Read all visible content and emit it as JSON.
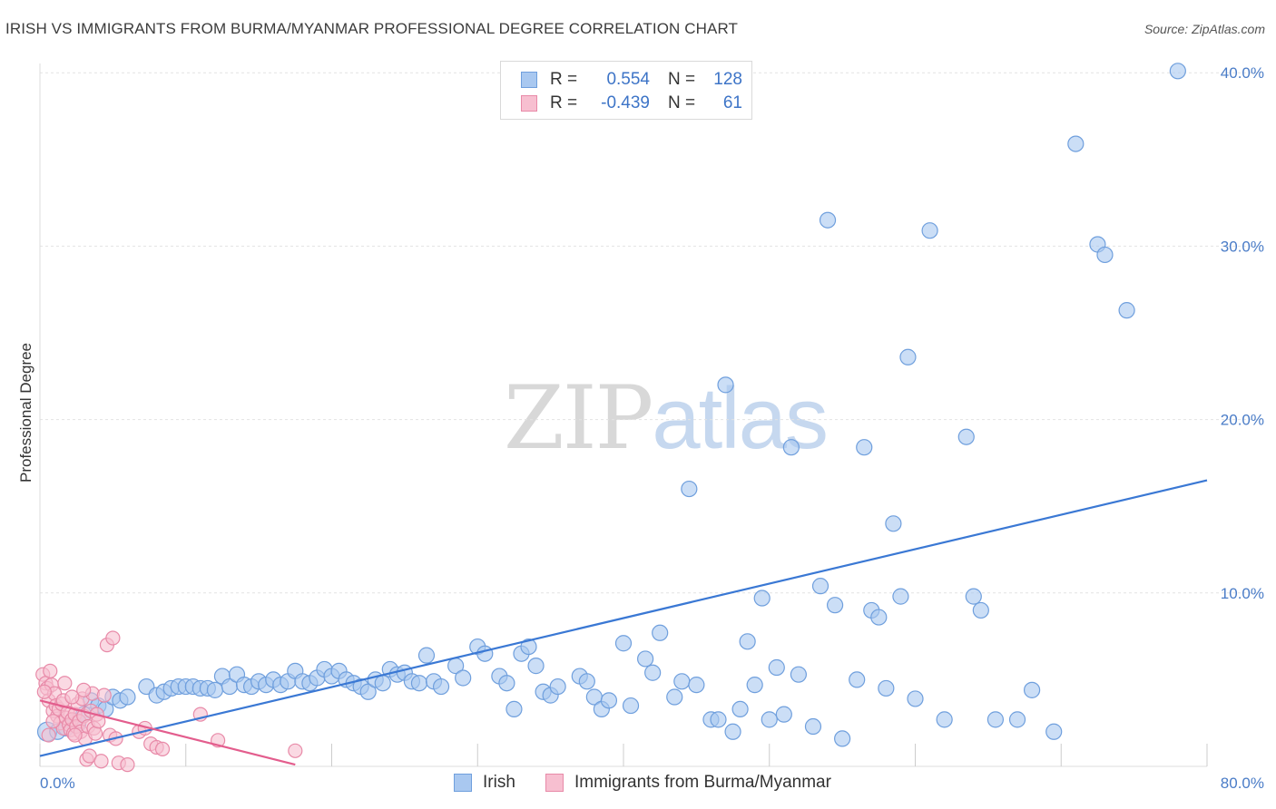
{
  "title": "IRISH VS IMMIGRANTS FROM BURMA/MYANMAR PROFESSIONAL DEGREE CORRELATION CHART",
  "source": "Source: ZipAtlas.com",
  "watermark": {
    "zip": "ZIP",
    "atlas": "atlas"
  },
  "legend": {
    "rows": [
      {
        "r_label": "R =",
        "r_value": "0.554",
        "n_label": "N =",
        "n_value": "128",
        "color": "#a9c8f0",
        "border": "#6f9fdd"
      },
      {
        "r_label": "R =",
        "r_value": "-0.439",
        "n_label": "N =",
        "n_value": "61",
        "color": "#f7bfd0",
        "border": "#e88aa8"
      }
    ]
  },
  "bottom_legend": [
    {
      "label": "Irish",
      "color": "#a9c8f0",
      "border": "#6f9fdd"
    },
    {
      "label": "Immigrants from Burma/Myanmar",
      "color": "#f7bfd0",
      "border": "#e88aa8"
    }
  ],
  "chart_data": {
    "type": "scatter",
    "title": "IRISH VS IMMIGRANTS FROM BURMA/MYANMAR PROFESSIONAL DEGREE CORRELATION CHART",
    "xlabel": "",
    "ylabel": "Professional Degree",
    "xlim": [
      0,
      80
    ],
    "ylim": [
      0,
      41
    ],
    "x_tick_labels": [
      "0.0%",
      "80.0%"
    ],
    "y_ticks": [
      10,
      20,
      30,
      40
    ],
    "y_tick_labels": [
      "10.0%",
      "20.0%",
      "30.0%",
      "40.0%"
    ],
    "grid": true,
    "series": [
      {
        "name": "Irish",
        "color": "#a9c8f0",
        "stroke": "#6f9fdd",
        "trend": {
          "x": [
            0,
            80
          ],
          "y": [
            0.6,
            16.5
          ],
          "color": "#3a78d4"
        },
        "points": [
          [
            0.5,
            2.0
          ],
          [
            1.2,
            2.0
          ],
          [
            1.8,
            2.2
          ],
          [
            2.5,
            2.5
          ],
          [
            3.0,
            3.0
          ],
          [
            3.5,
            3.8
          ],
          [
            4.0,
            3.5
          ],
          [
            4.5,
            3.3
          ],
          [
            5.0,
            4.0
          ],
          [
            5.5,
            3.8
          ],
          [
            6.0,
            4.0
          ],
          [
            7.3,
            4.6
          ],
          [
            8.0,
            4.1
          ],
          [
            8.5,
            4.3
          ],
          [
            9.0,
            4.5
          ],
          [
            9.5,
            4.6
          ],
          [
            10.0,
            4.6
          ],
          [
            10.5,
            4.6
          ],
          [
            11.0,
            4.5
          ],
          [
            11.5,
            4.5
          ],
          [
            12.0,
            4.4
          ],
          [
            12.5,
            5.2
          ],
          [
            13.0,
            4.6
          ],
          [
            13.5,
            5.3
          ],
          [
            14.0,
            4.7
          ],
          [
            14.5,
            4.6
          ],
          [
            15.0,
            4.9
          ],
          [
            15.5,
            4.7
          ],
          [
            16.0,
            5.0
          ],
          [
            16.5,
            4.7
          ],
          [
            17.0,
            4.9
          ],
          [
            17.5,
            5.5
          ],
          [
            18.0,
            4.9
          ],
          [
            18.5,
            4.8
          ],
          [
            19.0,
            5.1
          ],
          [
            19.5,
            5.6
          ],
          [
            20.0,
            5.2
          ],
          [
            20.5,
            5.5
          ],
          [
            21.0,
            5.0
          ],
          [
            21.5,
            4.8
          ],
          [
            22.0,
            4.6
          ],
          [
            22.5,
            4.3
          ],
          [
            23.0,
            5.0
          ],
          [
            23.5,
            4.8
          ],
          [
            24.0,
            5.6
          ],
          [
            24.5,
            5.3
          ],
          [
            25.0,
            5.4
          ],
          [
            25.5,
            4.9
          ],
          [
            26.0,
            4.8
          ],
          [
            26.5,
            6.4
          ],
          [
            27.0,
            4.9
          ],
          [
            27.5,
            4.6
          ],
          [
            28.5,
            5.8
          ],
          [
            29.0,
            5.1
          ],
          [
            30.0,
            6.9
          ],
          [
            30.5,
            6.5
          ],
          [
            31.5,
            5.2
          ],
          [
            32.0,
            4.8
          ],
          [
            32.5,
            3.3
          ],
          [
            33.0,
            6.5
          ],
          [
            33.5,
            6.9
          ],
          [
            34.0,
            5.8
          ],
          [
            34.5,
            4.3
          ],
          [
            35.0,
            4.1
          ],
          [
            35.5,
            4.6
          ],
          [
            37.0,
            5.2
          ],
          [
            37.5,
            4.9
          ],
          [
            38.0,
            4.0
          ],
          [
            38.5,
            3.3
          ],
          [
            39.0,
            3.8
          ],
          [
            40.0,
            7.1
          ],
          [
            40.5,
            3.5
          ],
          [
            41.5,
            6.2
          ],
          [
            42.0,
            5.4
          ],
          [
            42.5,
            7.7
          ],
          [
            43.5,
            4.0
          ],
          [
            44.0,
            4.9
          ],
          [
            44.5,
            16.0
          ],
          [
            45.0,
            4.7
          ],
          [
            46.0,
            2.7
          ],
          [
            46.5,
            2.7
          ],
          [
            47.5,
            2.0
          ],
          [
            47.0,
            22.0
          ],
          [
            48.0,
            3.3
          ],
          [
            48.5,
            7.2
          ],
          [
            49.0,
            4.7
          ],
          [
            49.5,
            9.7
          ],
          [
            50.0,
            2.7
          ],
          [
            50.5,
            5.7
          ],
          [
            51.0,
            3.0
          ],
          [
            51.5,
            18.4
          ],
          [
            52.0,
            5.3
          ],
          [
            53.0,
            2.3
          ],
          [
            53.5,
            10.4
          ],
          [
            54.0,
            31.5
          ],
          [
            54.5,
            9.3
          ],
          [
            55.0,
            1.6
          ],
          [
            56.0,
            5.0
          ],
          [
            56.5,
            18.4
          ],
          [
            57.0,
            9.0
          ],
          [
            57.5,
            8.6
          ],
          [
            58.0,
            4.5
          ],
          [
            58.5,
            14.0
          ],
          [
            59.0,
            9.8
          ],
          [
            59.5,
            23.6
          ],
          [
            60.0,
            3.9
          ],
          [
            61.0,
            30.9
          ],
          [
            62.0,
            2.7
          ],
          [
            63.5,
            19.0
          ],
          [
            64.0,
            9.8
          ],
          [
            64.5,
            9.0
          ],
          [
            65.5,
            2.7
          ],
          [
            67.0,
            2.7
          ],
          [
            68.0,
            4.4
          ],
          [
            69.5,
            2.0
          ],
          [
            71.0,
            35.9
          ],
          [
            72.5,
            30.1
          ],
          [
            73.0,
            29.5
          ],
          [
            74.5,
            26.3
          ],
          [
            78.0,
            40.1
          ]
        ]
      },
      {
        "name": "Immigrants from Burma/Myanmar",
        "color": "#f7bfd0",
        "stroke": "#e88aa8",
        "trend": {
          "x": [
            0,
            17.5
          ],
          "y": [
            3.8,
            0.1
          ],
          "color": "#e35d8d"
        },
        "points": [
          [
            0.2,
            5.3
          ],
          [
            0.4,
            4.8
          ],
          [
            0.5,
            4.5
          ],
          [
            0.6,
            3.8
          ],
          [
            0.7,
            5.5
          ],
          [
            0.8,
            4.7
          ],
          [
            0.9,
            3.2
          ],
          [
            1.0,
            4.2
          ],
          [
            1.1,
            3.5
          ],
          [
            1.2,
            2.9
          ],
          [
            1.3,
            3.3
          ],
          [
            1.4,
            2.5
          ],
          [
            1.5,
            3.6
          ],
          [
            1.6,
            2.2
          ],
          [
            1.7,
            4.8
          ],
          [
            1.8,
            2.8
          ],
          [
            1.9,
            3.1
          ],
          [
            2.0,
            2.4
          ],
          [
            2.1,
            2.1
          ],
          [
            2.2,
            2.7
          ],
          [
            2.3,
            1.9
          ],
          [
            2.4,
            3.0
          ],
          [
            2.5,
            2.3
          ],
          [
            2.6,
            3.6
          ],
          [
            2.7,
            2.6
          ],
          [
            2.8,
            2.0
          ],
          [
            2.9,
            3.9
          ],
          [
            3.0,
            2.9
          ],
          [
            3.1,
            1.6
          ],
          [
            3.2,
            0.4
          ],
          [
            3.3,
            2.3
          ],
          [
            3.4,
            0.6
          ],
          [
            3.5,
            3.2
          ],
          [
            3.6,
            4.2
          ],
          [
            3.7,
            2.2
          ],
          [
            3.8,
            1.9
          ],
          [
            3.9,
            3.0
          ],
          [
            4.0,
            2.6
          ],
          [
            4.2,
            0.3
          ],
          [
            4.4,
            4.1
          ],
          [
            4.6,
            7.0
          ],
          [
            4.8,
            1.8
          ],
          [
            5.0,
            7.4
          ],
          [
            5.2,
            1.6
          ],
          [
            5.4,
            0.2
          ],
          [
            6.0,
            0.1
          ],
          [
            6.8,
            2.0
          ],
          [
            7.2,
            2.2
          ],
          [
            7.6,
            1.3
          ],
          [
            8.0,
            1.1
          ],
          [
            8.4,
            1.0
          ],
          [
            11.0,
            3.0
          ],
          [
            12.2,
            1.5
          ],
          [
            17.5,
            0.9
          ],
          [
            0.3,
            4.3
          ],
          [
            0.9,
            2.6
          ],
          [
            1.6,
            3.8
          ],
          [
            2.4,
            1.8
          ],
          [
            3.0,
            4.4
          ],
          [
            0.6,
            1.8
          ],
          [
            2.2,
            4.0
          ]
        ]
      }
    ]
  }
}
